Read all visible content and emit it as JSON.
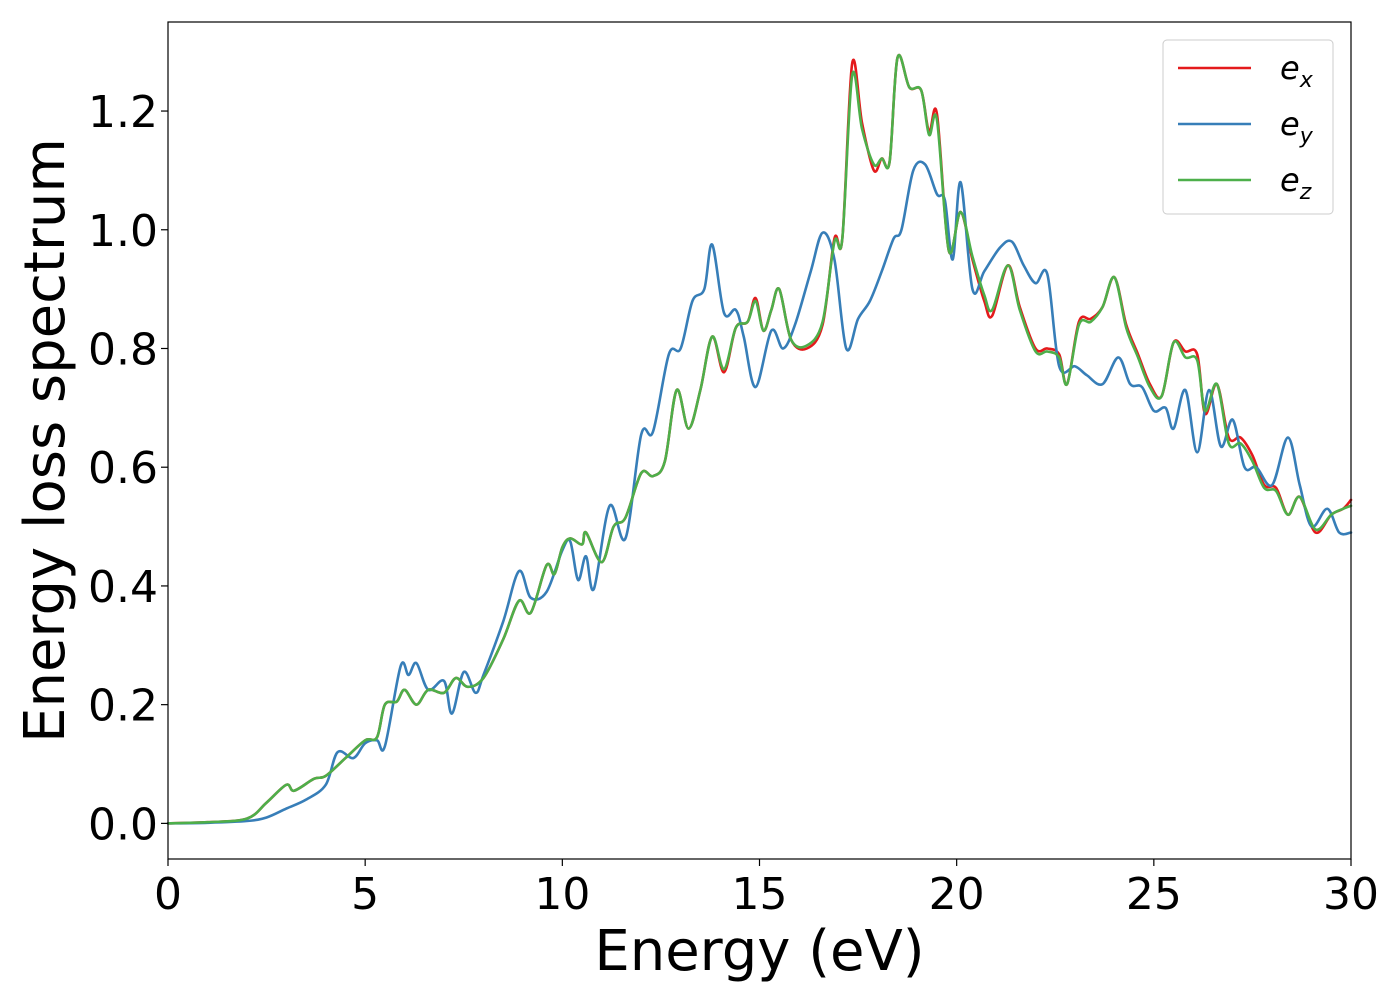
{
  "chart_data": {
    "type": "line",
    "xlabel": "Energy (eV)",
    "ylabel": "Energy loss spectrum",
    "xlim": [
      0,
      30
    ],
    "ylim": [
      -0.06,
      1.35
    ],
    "x_ticks": [
      0,
      5,
      10,
      15,
      20,
      25,
      30
    ],
    "x_tick_labels": [
      "0",
      "5",
      "10",
      "15",
      "20",
      "25",
      "30"
    ],
    "y_ticks": [
      0.0,
      0.2,
      0.4,
      0.6,
      0.8,
      1.0,
      1.2
    ],
    "y_tick_labels": [
      "0.0",
      "0.2",
      "0.4",
      "0.6",
      "0.8",
      "1.0",
      "1.2"
    ],
    "grid": false,
    "legend_position": "top-right",
    "series": [
      {
        "name": "e_x",
        "legend_base": "e",
        "legend_sub": "x",
        "color": "#e41a1c",
        "points": [
          [
            0,
            0
          ],
          [
            1,
            0.002
          ],
          [
            2,
            0.008
          ],
          [
            2.5,
            0.035
          ],
          [
            3,
            0.065
          ],
          [
            3.2,
            0.055
          ],
          [
            3.7,
            0.075
          ],
          [
            4,
            0.08
          ],
          [
            4.5,
            0.11
          ],
          [
            5,
            0.14
          ],
          [
            5.3,
            0.145
          ],
          [
            5.5,
            0.2
          ],
          [
            5.8,
            0.205
          ],
          [
            6,
            0.225
          ],
          [
            6.3,
            0.2
          ],
          [
            6.6,
            0.225
          ],
          [
            7,
            0.22
          ],
          [
            7.3,
            0.245
          ],
          [
            7.6,
            0.23
          ],
          [
            8,
            0.245
          ],
          [
            8.5,
            0.31
          ],
          [
            8.9,
            0.375
          ],
          [
            9.2,
            0.355
          ],
          [
            9.6,
            0.435
          ],
          [
            9.8,
            0.42
          ],
          [
            10,
            0.465
          ],
          [
            10.2,
            0.48
          ],
          [
            10.5,
            0.47
          ],
          [
            10.6,
            0.49
          ],
          [
            11,
            0.44
          ],
          [
            11.3,
            0.5
          ],
          [
            11.6,
            0.515
          ],
          [
            12,
            0.59
          ],
          [
            12.3,
            0.585
          ],
          [
            12.6,
            0.61
          ],
          [
            12.9,
            0.73
          ],
          [
            13.2,
            0.665
          ],
          [
            13.5,
            0.73
          ],
          [
            13.8,
            0.82
          ],
          [
            14.1,
            0.76
          ],
          [
            14.4,
            0.835
          ],
          [
            14.7,
            0.845
          ],
          [
            14.9,
            0.885
          ],
          [
            15.1,
            0.83
          ],
          [
            15.3,
            0.865
          ],
          [
            15.5,
            0.9
          ],
          [
            15.8,
            0.815
          ],
          [
            16.2,
            0.8
          ],
          [
            16.6,
            0.84
          ],
          [
            16.9,
            0.985
          ],
          [
            17.1,
            0.985
          ],
          [
            17.35,
            1.28
          ],
          [
            17.6,
            1.18
          ],
          [
            17.9,
            1.1
          ],
          [
            18.1,
            1.12
          ],
          [
            18.3,
            1.115
          ],
          [
            18.5,
            1.29
          ],
          [
            18.8,
            1.24
          ],
          [
            19.1,
            1.235
          ],
          [
            19.3,
            1.165
          ],
          [
            19.5,
            1.195
          ],
          [
            19.8,
            0.965
          ],
          [
            20.1,
            1.03
          ],
          [
            20.4,
            0.95
          ],
          [
            20.7,
            0.88
          ],
          [
            20.9,
            0.855
          ],
          [
            21.3,
            0.94
          ],
          [
            21.6,
            0.87
          ],
          [
            22,
            0.8
          ],
          [
            22.3,
            0.8
          ],
          [
            22.6,
            0.79
          ],
          [
            22.8,
            0.74
          ],
          [
            23.1,
            0.845
          ],
          [
            23.4,
            0.85
          ],
          [
            23.7,
            0.87
          ],
          [
            24,
            0.92
          ],
          [
            24.3,
            0.84
          ],
          [
            24.6,
            0.79
          ],
          [
            24.9,
            0.74
          ],
          [
            25.2,
            0.72
          ],
          [
            25.5,
            0.81
          ],
          [
            25.8,
            0.795
          ],
          [
            26.1,
            0.79
          ],
          [
            26.3,
            0.69
          ],
          [
            26.6,
            0.74
          ],
          [
            26.9,
            0.65
          ],
          [
            27.2,
            0.65
          ],
          [
            27.5,
            0.62
          ],
          [
            27.8,
            0.57
          ],
          [
            28.1,
            0.565
          ],
          [
            28.4,
            0.52
          ],
          [
            28.7,
            0.55
          ],
          [
            29.1,
            0.49
          ],
          [
            29.5,
            0.52
          ],
          [
            29.8,
            0.53
          ],
          [
            30,
            0.545
          ]
        ]
      },
      {
        "name": "e_y",
        "legend_base": "e",
        "legend_sub": "y",
        "color": "#377eb8",
        "points": [
          [
            0,
            0
          ],
          [
            1,
            0.001
          ],
          [
            2,
            0.004
          ],
          [
            2.5,
            0.01
          ],
          [
            3,
            0.025
          ],
          [
            3.5,
            0.04
          ],
          [
            4,
            0.065
          ],
          [
            4.3,
            0.12
          ],
          [
            4.7,
            0.11
          ],
          [
            5,
            0.135
          ],
          [
            5.3,
            0.14
          ],
          [
            5.5,
            0.13
          ],
          [
            5.9,
            0.265
          ],
          [
            6.1,
            0.25
          ],
          [
            6.3,
            0.27
          ],
          [
            6.6,
            0.225
          ],
          [
            7,
            0.24
          ],
          [
            7.2,
            0.185
          ],
          [
            7.5,
            0.255
          ],
          [
            7.8,
            0.22
          ],
          [
            8,
            0.25
          ],
          [
            8.5,
            0.34
          ],
          [
            8.9,
            0.425
          ],
          [
            9.2,
            0.38
          ],
          [
            9.6,
            0.39
          ],
          [
            10,
            0.46
          ],
          [
            10.2,
            0.475
          ],
          [
            10.4,
            0.41
          ],
          [
            10.6,
            0.45
          ],
          [
            10.8,
            0.395
          ],
          [
            11.2,
            0.535
          ],
          [
            11.6,
            0.48
          ],
          [
            12,
            0.655
          ],
          [
            12.3,
            0.66
          ],
          [
            12.7,
            0.79
          ],
          [
            13,
            0.8
          ],
          [
            13.3,
            0.88
          ],
          [
            13.6,
            0.9
          ],
          [
            13.8,
            0.975
          ],
          [
            14.1,
            0.86
          ],
          [
            14.4,
            0.865
          ],
          [
            14.6,
            0.82
          ],
          [
            14.9,
            0.735
          ],
          [
            15.3,
            0.83
          ],
          [
            15.6,
            0.8
          ],
          [
            15.9,
            0.84
          ],
          [
            16.3,
            0.93
          ],
          [
            16.6,
            0.995
          ],
          [
            16.9,
            0.95
          ],
          [
            17.2,
            0.8
          ],
          [
            17.5,
            0.85
          ],
          [
            17.8,
            0.88
          ],
          [
            18.1,
            0.93
          ],
          [
            18.4,
            0.985
          ],
          [
            18.6,
            1.0
          ],
          [
            18.9,
            1.1
          ],
          [
            19.2,
            1.11
          ],
          [
            19.5,
            1.06
          ],
          [
            19.7,
            1.05
          ],
          [
            19.9,
            0.95
          ],
          [
            20.1,
            1.08
          ],
          [
            20.4,
            0.9
          ],
          [
            20.7,
            0.93
          ],
          [
            21.1,
            0.97
          ],
          [
            21.4,
            0.98
          ],
          [
            21.7,
            0.94
          ],
          [
            22,
            0.91
          ],
          [
            22.3,
            0.925
          ],
          [
            22.6,
            0.77
          ],
          [
            23,
            0.77
          ],
          [
            23.3,
            0.755
          ],
          [
            23.7,
            0.74
          ],
          [
            24.1,
            0.785
          ],
          [
            24.4,
            0.74
          ],
          [
            24.7,
            0.735
          ],
          [
            25,
            0.695
          ],
          [
            25.3,
            0.7
          ],
          [
            25.5,
            0.665
          ],
          [
            25.8,
            0.73
          ],
          [
            26.1,
            0.625
          ],
          [
            26.4,
            0.73
          ],
          [
            26.7,
            0.635
          ],
          [
            27,
            0.68
          ],
          [
            27.3,
            0.6
          ],
          [
            27.6,
            0.6
          ],
          [
            28,
            0.57
          ],
          [
            28.4,
            0.65
          ],
          [
            28.7,
            0.57
          ],
          [
            29,
            0.5
          ],
          [
            29.4,
            0.53
          ],
          [
            29.7,
            0.49
          ],
          [
            30,
            0.49
          ]
        ]
      },
      {
        "name": "e_z",
        "legend_base": "e",
        "legend_sub": "z",
        "color": "#4daf4a",
        "points": [
          [
            0,
            0
          ],
          [
            1,
            0.002
          ],
          [
            2,
            0.008
          ],
          [
            2.5,
            0.035
          ],
          [
            3,
            0.065
          ],
          [
            3.2,
            0.055
          ],
          [
            3.7,
            0.075
          ],
          [
            4,
            0.08
          ],
          [
            4.5,
            0.11
          ],
          [
            5,
            0.14
          ],
          [
            5.3,
            0.145
          ],
          [
            5.5,
            0.2
          ],
          [
            5.8,
            0.205
          ],
          [
            6,
            0.225
          ],
          [
            6.3,
            0.2
          ],
          [
            6.6,
            0.225
          ],
          [
            7,
            0.22
          ],
          [
            7.3,
            0.245
          ],
          [
            7.6,
            0.23
          ],
          [
            8,
            0.245
          ],
          [
            8.5,
            0.31
          ],
          [
            8.9,
            0.375
          ],
          [
            9.2,
            0.355
          ],
          [
            9.6,
            0.435
          ],
          [
            9.8,
            0.42
          ],
          [
            10,
            0.465
          ],
          [
            10.2,
            0.48
          ],
          [
            10.5,
            0.47
          ],
          [
            10.6,
            0.49
          ],
          [
            11,
            0.44
          ],
          [
            11.3,
            0.5
          ],
          [
            11.6,
            0.515
          ],
          [
            12,
            0.59
          ],
          [
            12.3,
            0.585
          ],
          [
            12.6,
            0.61
          ],
          [
            12.9,
            0.73
          ],
          [
            13.2,
            0.665
          ],
          [
            13.5,
            0.73
          ],
          [
            13.8,
            0.82
          ],
          [
            14.1,
            0.765
          ],
          [
            14.4,
            0.835
          ],
          [
            14.7,
            0.845
          ],
          [
            14.9,
            0.88
          ],
          [
            15.1,
            0.83
          ],
          [
            15.3,
            0.865
          ],
          [
            15.5,
            0.9
          ],
          [
            15.8,
            0.815
          ],
          [
            16.2,
            0.805
          ],
          [
            16.6,
            0.845
          ],
          [
            16.9,
            0.98
          ],
          [
            17.1,
            0.985
          ],
          [
            17.35,
            1.26
          ],
          [
            17.6,
            1.17
          ],
          [
            17.9,
            1.11
          ],
          [
            18.1,
            1.12
          ],
          [
            18.3,
            1.115
          ],
          [
            18.5,
            1.29
          ],
          [
            18.8,
            1.24
          ],
          [
            19.1,
            1.235
          ],
          [
            19.3,
            1.16
          ],
          [
            19.5,
            1.185
          ],
          [
            19.8,
            0.965
          ],
          [
            20.1,
            1.03
          ],
          [
            20.4,
            0.955
          ],
          [
            20.7,
            0.89
          ],
          [
            20.9,
            0.865
          ],
          [
            21.3,
            0.94
          ],
          [
            21.6,
            0.865
          ],
          [
            22,
            0.795
          ],
          [
            22.3,
            0.795
          ],
          [
            22.6,
            0.785
          ],
          [
            22.8,
            0.74
          ],
          [
            23.1,
            0.84
          ],
          [
            23.4,
            0.845
          ],
          [
            23.7,
            0.87
          ],
          [
            24,
            0.92
          ],
          [
            24.3,
            0.835
          ],
          [
            24.6,
            0.785
          ],
          [
            24.9,
            0.735
          ],
          [
            25.2,
            0.72
          ],
          [
            25.5,
            0.81
          ],
          [
            25.8,
            0.785
          ],
          [
            26.1,
            0.78
          ],
          [
            26.3,
            0.695
          ],
          [
            26.6,
            0.74
          ],
          [
            26.9,
            0.64
          ],
          [
            27.2,
            0.64
          ],
          [
            27.5,
            0.61
          ],
          [
            27.8,
            0.565
          ],
          [
            28.1,
            0.56
          ],
          [
            28.4,
            0.52
          ],
          [
            28.7,
            0.55
          ],
          [
            29.1,
            0.495
          ],
          [
            29.5,
            0.52
          ],
          [
            29.8,
            0.53
          ],
          [
            30,
            0.535
          ]
        ]
      }
    ]
  }
}
